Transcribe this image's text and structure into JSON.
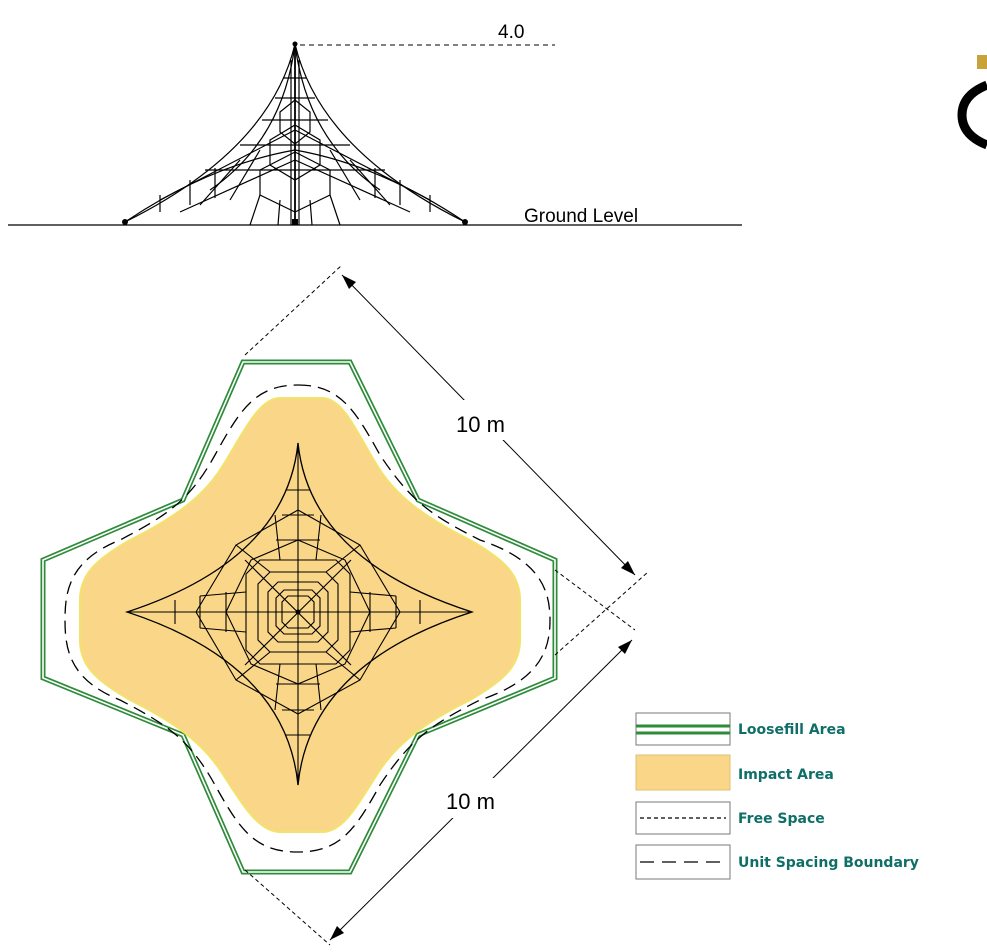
{
  "elevation": {
    "height_label": "4.0",
    "ground_label": "Ground Level"
  },
  "plan": {
    "dimension_upper": "10 m",
    "dimension_lower": "10 m"
  },
  "legend": {
    "items": [
      {
        "key": "loosefill",
        "label": "Loosefill Area"
      },
      {
        "key": "impact",
        "label": "Impact Area"
      },
      {
        "key": "free",
        "label": "Free Space"
      },
      {
        "key": "unit",
        "label": "Unit Spacing Boundary"
      }
    ]
  },
  "colors": {
    "loosefill": "#2e8b3a",
    "impact": "#fad689",
    "impact_edge": "#f2e36a",
    "legend_text": "#0f6f68",
    "line": "#000000",
    "logo": "#c8a23a"
  }
}
